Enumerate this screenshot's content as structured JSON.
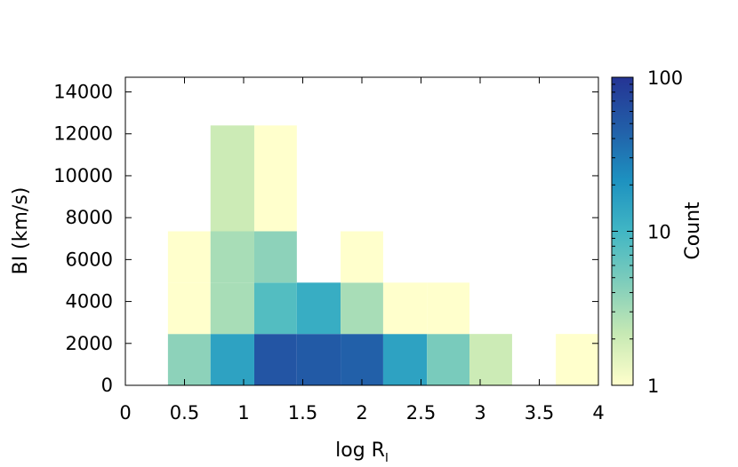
{
  "chart_data": {
    "type": "heatmap",
    "title": "",
    "xlabel": "log R",
    "xlabel_subscript": "I",
    "ylabel": "BI (km/s)",
    "colorbar_label": "Count",
    "xlim": [
      0,
      4
    ],
    "ylim": [
      0,
      14700
    ],
    "x_ticks": [
      "0",
      "0.5",
      "1",
      "1.5",
      "2",
      "2.5",
      "3",
      "3.5",
      "4"
    ],
    "y_ticks": [
      "0",
      "2000",
      "4000",
      "6000",
      "8000",
      "10000",
      "12000",
      "14000"
    ],
    "colorbar_ticks": [
      "1",
      "10",
      "100"
    ],
    "color_scale": "log",
    "color_range": [
      1,
      100
    ],
    "colormap": [
      "#ffffcc",
      "#c7e9b4",
      "#7fcdbb",
      "#41b6c4",
      "#1d91c0",
      "#225ea8",
      "#253494"
    ],
    "cells": [
      {
        "x0": 0.36,
        "x1": 0.72,
        "y0": 0,
        "y1": 2450,
        "count": 4
      },
      {
        "x0": 0.72,
        "x1": 1.09,
        "y0": 0,
        "y1": 2450,
        "count": 15
      },
      {
        "x0": 1.09,
        "x1": 1.45,
        "y0": 0,
        "y1": 2450,
        "count": 55
      },
      {
        "x0": 1.45,
        "x1": 1.82,
        "y0": 0,
        "y1": 2450,
        "count": 50
      },
      {
        "x0": 1.82,
        "x1": 2.18,
        "y0": 0,
        "y1": 2450,
        "count": 45
      },
      {
        "x0": 2.18,
        "x1": 2.55,
        "y0": 0,
        "y1": 2450,
        "count": 15
      },
      {
        "x0": 2.55,
        "x1": 2.91,
        "y0": 0,
        "y1": 2450,
        "count": 5
      },
      {
        "x0": 2.91,
        "x1": 3.27,
        "y0": 0,
        "y1": 2450,
        "count": 2
      },
      {
        "x0": 3.64,
        "x1": 4.0,
        "y0": 0,
        "y1": 2450,
        "count": 1
      },
      {
        "x0": 0.36,
        "x1": 0.72,
        "y0": 2450,
        "y1": 4900,
        "count": 1
      },
      {
        "x0": 0.72,
        "x1": 1.09,
        "y0": 2450,
        "y1": 4900,
        "count": 3
      },
      {
        "x0": 1.09,
        "x1": 1.45,
        "y0": 2450,
        "y1": 4900,
        "count": 8
      },
      {
        "x0": 1.45,
        "x1": 1.82,
        "y0": 2450,
        "y1": 4900,
        "count": 12
      },
      {
        "x0": 1.82,
        "x1": 2.18,
        "y0": 2450,
        "y1": 4900,
        "count": 3
      },
      {
        "x0": 2.18,
        "x1": 2.55,
        "y0": 2450,
        "y1": 4900,
        "count": 1
      },
      {
        "x0": 2.55,
        "x1": 2.91,
        "y0": 2450,
        "y1": 4900,
        "count": 1
      },
      {
        "x0": 0.36,
        "x1": 0.72,
        "y0": 4900,
        "y1": 7350,
        "count": 1
      },
      {
        "x0": 0.72,
        "x1": 1.09,
        "y0": 4900,
        "y1": 7350,
        "count": 3
      },
      {
        "x0": 1.09,
        "x1": 1.45,
        "y0": 4900,
        "y1": 7350,
        "count": 4
      },
      {
        "x0": 1.82,
        "x1": 2.18,
        "y0": 4900,
        "y1": 7350,
        "count": 1
      },
      {
        "x0": 0.72,
        "x1": 1.09,
        "y0": 7350,
        "y1": 12400,
        "count": 2
      },
      {
        "x0": 1.09,
        "x1": 1.45,
        "y0": 7350,
        "y1": 12400,
        "count": 1
      }
    ]
  }
}
